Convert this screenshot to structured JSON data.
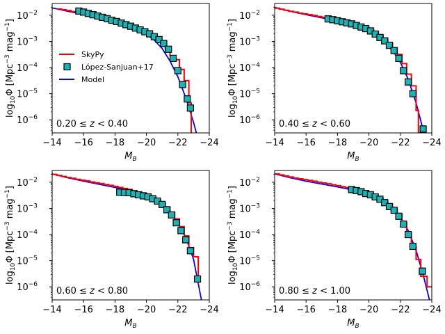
{
  "figure": {
    "legend": {
      "placement": "center-left of first panel",
      "entries": [
        {
          "label": "SkyPy",
          "kind": "line",
          "color": "#ff0000"
        },
        {
          "label": "López-Sanjuan+17",
          "kind": "marker",
          "color": "#17becf"
        },
        {
          "label": "Model",
          "kind": "line",
          "color": "#0000ff"
        }
      ]
    },
    "colors": {
      "skypy": "#ff0000",
      "model": "#0000ff",
      "marker_fill": "#17b5b5",
      "marker_edge": "#000000"
    }
  },
  "chart_data": [
    {
      "type": "line",
      "annotation": "0.20 ≤ z < 0.40",
      "xlabel": "M_B",
      "ylabel": "log10 Φ [Mpc^-3 mag^-1]",
      "xlim": [
        -14,
        -24
      ],
      "ylim_log10": [
        -6.5,
        -1.55
      ],
      "xticks": [
        -14,
        -16,
        -18,
        -20,
        -22,
        -24
      ],
      "xtick_labels": [
        "−14",
        "−16",
        "−18",
        "−20",
        "−22",
        "−24"
      ],
      "yticks_log10": [
        -2,
        -3,
        -4,
        -5,
        -6
      ],
      "ytick_labels": [
        "10^-2",
        "10^-3",
        "10^-4",
        "10^-5",
        "10^-6"
      ],
      "show_legend": true,
      "series": [
        {
          "name": "Model",
          "x": [
            -14.0,
            -15.0,
            -16.0,
            -17.0,
            -18.0,
            -19.0,
            -19.5,
            -20.0,
            -20.5,
            -21.0,
            -21.5,
            -22.0,
            -22.5,
            -23.0,
            -23.2
          ],
          "log10y": [
            -1.72,
            -1.85,
            -1.97,
            -2.1,
            -2.25,
            -2.43,
            -2.55,
            -2.72,
            -2.95,
            -3.27,
            -3.75,
            -4.35,
            -5.15,
            -6.1,
            -6.55
          ]
        },
        {
          "name": "SkyPy",
          "step": true,
          "x": [
            -14.3,
            -14.6,
            -14.9,
            -15.2,
            -15.5,
            -15.8,
            -16.1,
            -16.4,
            -16.7,
            -17.0,
            -17.3,
            -17.6,
            -17.9,
            -18.2,
            -18.5,
            -18.8,
            -19.1,
            -19.4,
            -19.7,
            -20.0,
            -20.3,
            -20.6,
            -20.9,
            -21.2,
            -21.5,
            -21.8,
            -22.1,
            -22.4,
            -22.7,
            -22.85
          ],
          "log10y": [
            -1.76,
            -1.79,
            -1.82,
            -1.86,
            -1.89,
            -1.93,
            -1.96,
            -2.0,
            -2.04,
            -2.08,
            -2.12,
            -2.17,
            -2.22,
            -2.27,
            -2.32,
            -2.37,
            -2.44,
            -2.51,
            -2.58,
            -2.67,
            -2.78,
            -2.91,
            -3.08,
            -3.3,
            -3.55,
            -3.7,
            -4.07,
            -4.5,
            -5.35,
            -6.5
          ]
        },
        {
          "name": "López-Sanjuan+17",
          "marker": "square",
          "x": [
            -15.7,
            -16.0,
            -16.3,
            -16.6,
            -16.9,
            -17.2,
            -17.5,
            -17.8,
            -18.1,
            -18.4,
            -18.7,
            -19.0,
            -19.3,
            -19.6,
            -19.9,
            -20.2,
            -20.5,
            -20.8,
            -21.1,
            -21.4,
            -21.7,
            -22.0,
            -22.3,
            -22.6,
            -22.8
          ],
          "log10y": [
            -1.84,
            -1.88,
            -1.93,
            -1.98,
            -2.03,
            -2.08,
            -2.13,
            -2.19,
            -2.24,
            -2.3,
            -2.36,
            -2.42,
            -2.49,
            -2.56,
            -2.63,
            -2.71,
            -2.82,
            -2.93,
            -3.08,
            -3.3,
            -3.65,
            -4.12,
            -4.65,
            -5.2,
            -5.55
          ]
        }
      ]
    },
    {
      "type": "line",
      "annotation": "0.40 ≤ z < 0.60",
      "xlabel": "M_B",
      "ylabel": "log10 Φ [Mpc^-3 mag^-1]",
      "xlim": [
        -14,
        -24
      ],
      "ylim_log10": [
        -6.5,
        -1.55
      ],
      "xticks": [
        -14,
        -16,
        -18,
        -20,
        -22,
        -24
      ],
      "xtick_labels": [
        "−14",
        "−16",
        "−18",
        "−20",
        "−22",
        "−24"
      ],
      "yticks_log10": [
        -2,
        -3,
        -4,
        -5,
        -6
      ],
      "ytick_labels": [
        "10^-2",
        "10^-3",
        "10^-4",
        "10^-5",
        "10^-6"
      ],
      "show_legend": false,
      "series": [
        {
          "name": "Model",
          "x": [
            -14.0,
            -15.0,
            -16.0,
            -17.0,
            -18.0,
            -19.0,
            -19.5,
            -20.0,
            -20.5,
            -21.0,
            -21.5,
            -22.0,
            -22.5,
            -23.0,
            -23.5
          ],
          "log10y": [
            -1.7,
            -1.85,
            -1.98,
            -2.1,
            -2.23,
            -2.38,
            -2.47,
            -2.6,
            -2.78,
            -3.02,
            -3.35,
            -3.8,
            -4.45,
            -5.35,
            -6.5
          ]
        },
        {
          "name": "SkyPy",
          "step": true,
          "x": [
            -14.0,
            -14.3,
            -14.6,
            -14.9,
            -15.2,
            -15.5,
            -15.8,
            -16.1,
            -16.4,
            -16.7,
            -17.0,
            -17.3,
            -17.6,
            -17.9,
            -18.2,
            -18.5,
            -18.8,
            -19.1,
            -19.4,
            -19.7,
            -20.0,
            -20.3,
            -20.6,
            -20.9,
            -21.2,
            -21.5,
            -21.8,
            -22.1,
            -22.4,
            -22.7,
            -23.0,
            -23.15
          ],
          "log10y": [
            -1.73,
            -1.77,
            -1.81,
            -1.85,
            -1.88,
            -1.92,
            -1.95,
            -1.98,
            -2.01,
            -2.05,
            -2.08,
            -2.12,
            -2.15,
            -2.19,
            -2.23,
            -2.27,
            -2.31,
            -2.36,
            -2.41,
            -2.47,
            -2.54,
            -2.63,
            -2.75,
            -2.9,
            -3.07,
            -3.25,
            -3.5,
            -3.85,
            -4.25,
            -4.7,
            -5.65,
            -6.5
          ]
        },
        {
          "name": "López-Sanjuan+17",
          "marker": "square",
          "x": [
            -17.4,
            -17.7,
            -18.0,
            -18.3,
            -18.6,
            -18.9,
            -19.2,
            -19.5,
            -19.8,
            -20.1,
            -20.4,
            -20.7,
            -21.0,
            -21.3,
            -21.6,
            -21.9,
            -22.2,
            -22.5,
            -22.8,
            -23.45
          ],
          "log10y": [
            -2.14,
            -2.17,
            -2.21,
            -2.25,
            -2.29,
            -2.33,
            -2.39,
            -2.45,
            -2.51,
            -2.6,
            -2.72,
            -2.85,
            -2.98,
            -3.15,
            -3.35,
            -3.65,
            -4.12,
            -4.55,
            -5.0,
            -6.35
          ]
        }
      ]
    },
    {
      "type": "line",
      "annotation": "0.60 ≤ z < 0.80",
      "xlabel": "M_B",
      "ylabel": "log10 Φ [Mpc^-3 mag^-1]",
      "xlim": [
        -14,
        -24
      ],
      "ylim_log10": [
        -6.5,
        -1.55
      ],
      "xticks": [
        -14,
        -16,
        -18,
        -20,
        -22,
        -24
      ],
      "xtick_labels": [
        "−14",
        "−16",
        "−18",
        "−20",
        "−22",
        "−24"
      ],
      "yticks_log10": [
        -2,
        -3,
        -4,
        -5,
        -6
      ],
      "ytick_labels": [
        "10^-2",
        "10^-3",
        "10^-4",
        "10^-5",
        "10^-6"
      ],
      "show_legend": false,
      "series": [
        {
          "name": "Model",
          "x": [
            -14.0,
            -15.0,
            -16.0,
            -17.0,
            -18.0,
            -19.0,
            -19.5,
            -20.0,
            -20.5,
            -21.0,
            -21.5,
            -22.0,
            -22.5,
            -23.0,
            -23.5
          ],
          "log10y": [
            -1.68,
            -1.83,
            -1.96,
            -2.08,
            -2.2,
            -2.33,
            -2.42,
            -2.53,
            -2.68,
            -2.88,
            -3.15,
            -3.55,
            -4.1,
            -4.95,
            -6.5
          ]
        },
        {
          "name": "SkyPy",
          "step": true,
          "x": [
            -14.0,
            -14.3,
            -14.6,
            -14.9,
            -15.2,
            -15.5,
            -15.8,
            -16.1,
            -16.4,
            -16.7,
            -17.0,
            -17.3,
            -17.6,
            -17.9,
            -18.2,
            -18.5,
            -18.8,
            -19.1,
            -19.4,
            -19.7,
            -20.0,
            -20.3,
            -20.6,
            -20.9,
            -21.2,
            -21.5,
            -21.8,
            -22.1,
            -22.4,
            -22.7,
            -23.0,
            -23.3
          ],
          "log10y": [
            -1.7,
            -1.74,
            -1.78,
            -1.82,
            -1.85,
            -1.89,
            -1.92,
            -1.95,
            -1.99,
            -2.02,
            -2.05,
            -2.09,
            -2.12,
            -2.16,
            -2.2,
            -2.24,
            -2.28,
            -2.33,
            -2.38,
            -2.43,
            -2.5,
            -2.58,
            -2.68,
            -2.8,
            -2.95,
            -3.15,
            -3.4,
            -3.7,
            -4.05,
            -4.5,
            -4.85,
            -5.9
          ]
        },
        {
          "name": "López-Sanjuan+17",
          "marker": "square",
          "x": [
            -18.3,
            -18.6,
            -18.9,
            -19.2,
            -19.5,
            -19.8,
            -20.1,
            -20.4,
            -20.7,
            -21.0,
            -21.3,
            -21.6,
            -21.9,
            -22.2,
            -22.5,
            -22.8,
            -23.25
          ],
          "log10y": [
            -2.38,
            -2.39,
            -2.4,
            -2.44,
            -2.48,
            -2.52,
            -2.56,
            -2.63,
            -2.72,
            -2.85,
            -3.05,
            -3.25,
            -3.55,
            -3.85,
            -4.2,
            -4.62,
            -5.7
          ]
        }
      ]
    },
    {
      "type": "line",
      "annotation": "0.80 ≤ z < 1.00",
      "xlabel": "M_B",
      "ylabel": "log10 Φ [Mpc^-3 mag^-1]",
      "xlim": [
        -14,
        -24
      ],
      "ylim_log10": [
        -6.5,
        -1.55
      ],
      "xticks": [
        -14,
        -16,
        -18,
        -20,
        -22,
        -24
      ],
      "xtick_labels": [
        "−14",
        "−16",
        "−18",
        "−20",
        "−22",
        "−24"
      ],
      "yticks_log10": [
        -2,
        -3,
        -4,
        -5,
        -6
      ],
      "ytick_labels": [
        "10^-2",
        "10^-3",
        "10^-4",
        "10^-5",
        "10^-6"
      ],
      "show_legend": false,
      "series": [
        {
          "name": "Model",
          "x": [
            -14.0,
            -15.0,
            -16.0,
            -17.0,
            -18.0,
            -19.0,
            -19.5,
            -20.0,
            -20.5,
            -21.0,
            -21.5,
            -22.0,
            -22.5,
            -23.0,
            -23.5,
            -23.85
          ],
          "log10y": [
            -1.68,
            -1.83,
            -1.96,
            -2.07,
            -2.18,
            -2.3,
            -2.38,
            -2.47,
            -2.6,
            -2.77,
            -3.0,
            -3.35,
            -3.85,
            -4.6,
            -5.65,
            -6.5
          ]
        },
        {
          "name": "SkyPy",
          "step": true,
          "x": [
            -14.0,
            -14.3,
            -14.6,
            -14.9,
            -15.2,
            -15.5,
            -15.8,
            -16.1,
            -16.4,
            -16.7,
            -17.0,
            -17.3,
            -17.6,
            -17.9,
            -18.2,
            -18.5,
            -18.8,
            -19.1,
            -19.4,
            -19.7,
            -20.0,
            -20.3,
            -20.6,
            -20.9,
            -21.2,
            -21.5,
            -21.8,
            -22.1,
            -22.4,
            -22.7,
            -23.0,
            -23.3,
            -23.7,
            -24.0
          ],
          "log10y": [
            -1.68,
            -1.72,
            -1.76,
            -1.8,
            -1.84,
            -1.87,
            -1.9,
            -1.93,
            -1.96,
            -2.0,
            -2.03,
            -2.06,
            -2.1,
            -2.13,
            -2.17,
            -2.21,
            -2.25,
            -2.3,
            -2.35,
            -2.4,
            -2.46,
            -2.53,
            -2.62,
            -2.73,
            -2.87,
            -3.03,
            -3.25,
            -3.55,
            -3.95,
            -4.45,
            -4.95,
            -5.6,
            -6.0,
            -6.0
          ]
        },
        {
          "name": "López-Sanjuan+17",
          "marker": "square",
          "x": [
            -18.9,
            -19.2,
            -19.5,
            -19.8,
            -20.1,
            -20.4,
            -20.7,
            -21.0,
            -21.3,
            -21.6,
            -21.9,
            -22.2,
            -22.5,
            -22.8,
            -23.4
          ],
          "log10y": [
            -2.28,
            -2.32,
            -2.36,
            -2.43,
            -2.48,
            -2.56,
            -2.65,
            -2.78,
            -2.93,
            -3.07,
            -3.3,
            -3.6,
            -4.0,
            -4.45,
            -5.4
          ]
        }
      ]
    }
  ]
}
